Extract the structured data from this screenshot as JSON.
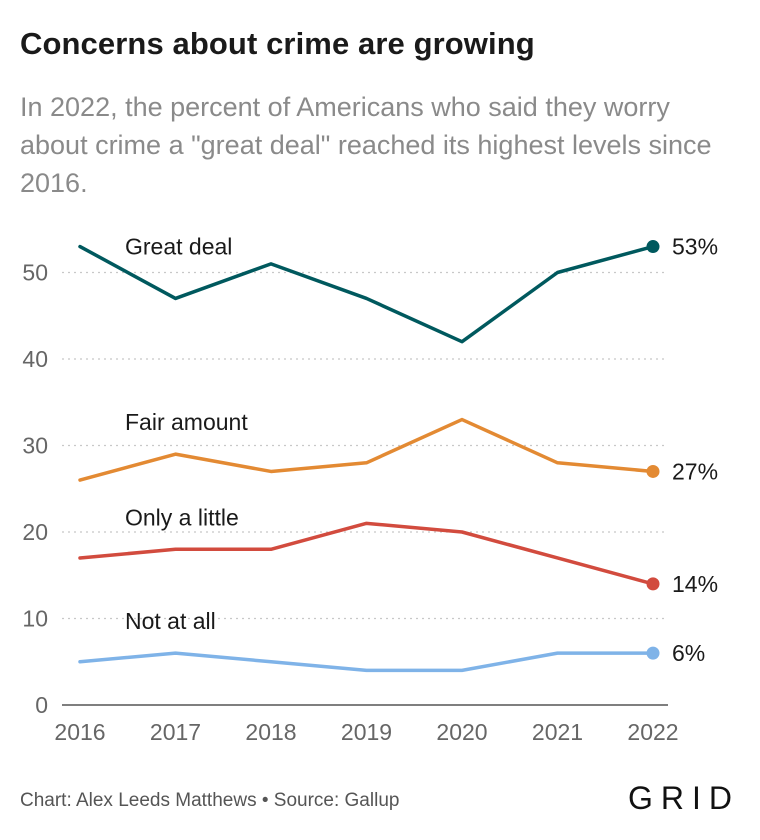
{
  "header": {
    "title": "Concerns about crime are growing",
    "subtitle": "In 2022, the percent of Americans who said they worry about crime a \"great deal\" reached its highest levels since 2016."
  },
  "footer": {
    "credit": "Chart: Alex Leeds Matthews • Source: Gallup",
    "logo": "GRID"
  },
  "chart_data": {
    "type": "line",
    "x": [
      "2016",
      "2017",
      "2018",
      "2019",
      "2020",
      "2021",
      "2022"
    ],
    "ylim": [
      0,
      55
    ],
    "yticks": [
      0,
      10,
      20,
      30,
      40,
      50
    ],
    "grid": true,
    "series": [
      {
        "name": "Great deal",
        "color": "#00595e",
        "values": [
          53,
          47,
          51,
          47,
          42,
          50,
          53
        ],
        "end_label": "53%"
      },
      {
        "name": "Fair amount",
        "color": "#e38a33",
        "values": [
          26,
          29,
          27,
          28,
          33,
          28,
          27
        ],
        "end_label": "27%"
      },
      {
        "name": "Only a little",
        "color": "#d24b3e",
        "values": [
          17,
          18,
          18,
          21,
          20,
          17,
          14
        ],
        "end_label": "14%"
      },
      {
        "name": "Not at all",
        "color": "#7fb3e8",
        "values": [
          5,
          6,
          5,
          4,
          4,
          6,
          6
        ],
        "end_label": "6%"
      }
    ]
  }
}
